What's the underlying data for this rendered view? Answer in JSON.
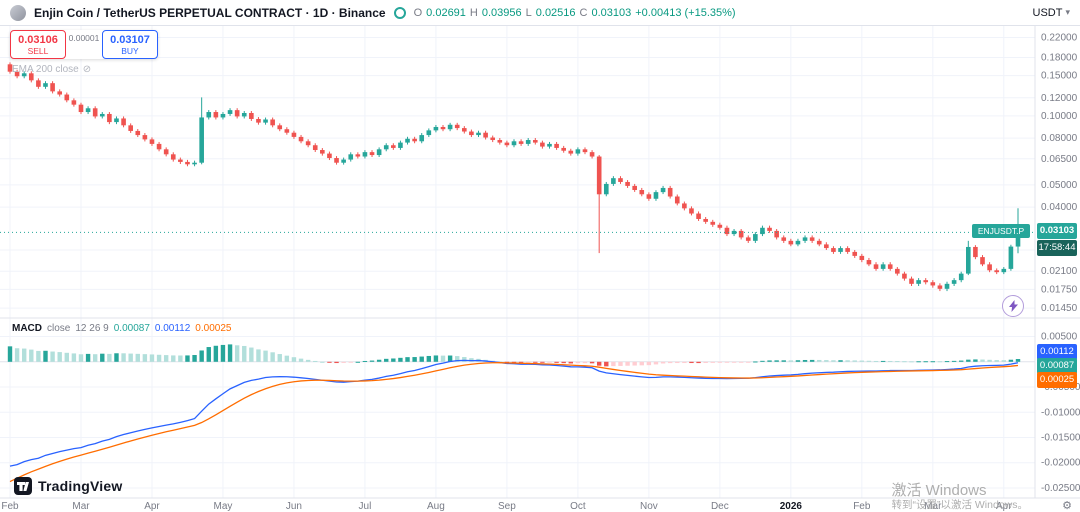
{
  "toolbar": {
    "symbol_title": "Enjin Coin / TetherUS PERPETUAL CONTRACT · 1D · Binance",
    "ohlc": {
      "o_label": "O",
      "o_value": "0.02691",
      "h_label": "H",
      "h_value": "0.03956",
      "l_label": "L",
      "l_value": "0.02516",
      "c_label": "C",
      "c_value": "0.03103",
      "change": "+0.00413 (+15.35%)"
    },
    "currency": "USDT"
  },
  "trade_panel": {
    "sell_price": "0.03106",
    "sell_label": "SELL",
    "spread": "0.00001",
    "buy_price": "0.03107",
    "buy_label": "BUY"
  },
  "indicators": {
    "ema": {
      "label": "EMA 200 close"
    },
    "macd": {
      "name": "MACD",
      "source": "close",
      "params": "12 26 9",
      "hist_value": "0.00087",
      "macd_value": "0.00112",
      "signal_value": "0.00025"
    }
  },
  "price_axis": {
    "labels": [
      "0.22000",
      "0.18000",
      "0.15000",
      "0.12000",
      "0.10000",
      "0.08000",
      "0.06500",
      "0.05000",
      "0.04000",
      "0.02600",
      "0.02100",
      "0.01750",
      "0.01450"
    ],
    "last_price": "0.03103",
    "countdown": "17:58:44",
    "symbol_tag": "ENJUSDT.P"
  },
  "macd_axis": {
    "labels": [
      "0.00500",
      "-0.00500",
      "-0.01000",
      "-0.01500",
      "-0.02000",
      "-0.02500"
    ],
    "badges": {
      "macd": "0.00112",
      "hist": "0.00087",
      "signal": "0.00025"
    }
  },
  "branding": {
    "name": "TradingView"
  },
  "watermark": {
    "line1": "激活 Windows",
    "line2": "转到“设置”以激活 Windows。"
  },
  "colors": {
    "up": "#26a69a",
    "down": "#ef5350",
    "text_up": "#089981",
    "macd_line": "#2962ff",
    "signal_line": "#ff6d00",
    "hist_up": "#26a69a",
    "hist_up_weak": "#b2dfdb",
    "hist_down": "#ef5350",
    "hist_down_weak": "#ffcdd2",
    "grid": "#f0f3fa",
    "axis_text": "#787b86",
    "border": "#e0e3eb",
    "sell": "#f23645",
    "buy": "#2962ff"
  },
  "chart_data": {
    "type": "candlestick",
    "symbol": "ENJUSDT.P",
    "exchange": "Binance",
    "interval": "1D",
    "price_scale": "log",
    "y_domain": [
      0.0138,
      0.242
    ],
    "price_ticks": [
      0.22,
      0.18,
      0.15,
      0.12,
      0.1,
      0.08,
      0.065,
      0.05,
      0.04,
      0.026,
      0.021,
      0.0175,
      0.0145
    ],
    "last_price": 0.03103,
    "last_candle": {
      "open": 0.02691,
      "high": 0.03956,
      "low": 0.02516,
      "close": 0.03103,
      "change_pct": 15.35
    },
    "months": [
      "Feb",
      "Mar",
      "Apr",
      "May",
      "Jun",
      "Jul",
      "Aug",
      "Sep",
      "Oct",
      "Nov",
      "Dec",
      "2026",
      "Feb",
      "Mar",
      "Apr"
    ],
    "month_indices": [
      0,
      10,
      20,
      30,
      40,
      50,
      60,
      70,
      80,
      90,
      100,
      110,
      120,
      130,
      140
    ],
    "candles_ohlc": [
      [
        0.168,
        0.1714,
        0.1529,
        0.156
      ],
      [
        0.156,
        0.1591,
        0.146,
        0.149
      ],
      [
        0.149,
        0.1566,
        0.146,
        0.1535
      ],
      [
        0.1535,
        0.1566,
        0.1401,
        0.143
      ],
      [
        0.143,
        0.1459,
        0.1313,
        0.134
      ],
      [
        0.134,
        0.1418,
        0.1313,
        0.139
      ],
      [
        0.139,
        0.1418,
        0.1254,
        0.128
      ],
      [
        0.128,
        0.1306,
        0.1215,
        0.124
      ],
      [
        0.124,
        0.1265,
        0.1147,
        0.117
      ],
      [
        0.117,
        0.1193,
        0.1098,
        0.112
      ],
      [
        0.112,
        0.1142,
        0.1019,
        0.104
      ],
      [
        0.104,
        0.1102,
        0.1019,
        0.108
      ],
      [
        0.108,
        0.1102,
        0.0975,
        0.0995
      ],
      [
        0.0995,
        0.104,
        0.0975,
        0.102
      ],
      [
        0.102,
        0.104,
        0.0921,
        0.094
      ],
      [
        0.094,
        0.0995,
        0.0921,
        0.0975
      ],
      [
        0.0975,
        0.0995,
        0.0892,
        0.091
      ],
      [
        0.091,
        0.0928,
        0.0843,
        0.086
      ],
      [
        0.086,
        0.0877,
        0.0809,
        0.0825
      ],
      [
        0.0825,
        0.0842,
        0.0774,
        0.079
      ],
      [
        0.079,
        0.0806,
        0.074,
        0.0755
      ],
      [
        0.0755,
        0.077,
        0.0701,
        0.0715
      ],
      [
        0.0715,
        0.0729,
        0.0666,
        0.068
      ],
      [
        0.068,
        0.0694,
        0.0632,
        0.0645
      ],
      [
        0.0645,
        0.0658,
        0.0617,
        0.063
      ],
      [
        0.063,
        0.0643,
        0.0603,
        0.0615
      ],
      [
        0.0615,
        0.0638,
        0.0603,
        0.0625
      ],
      [
        0.0625,
        0.1205,
        0.0615,
        0.0985
      ],
      [
        0.0985,
        0.1061,
        0.0965,
        0.104
      ],
      [
        0.104,
        0.1061,
        0.0965,
        0.0985
      ],
      [
        0.0985,
        0.104,
        0.0965,
        0.102
      ],
      [
        0.102,
        0.1081,
        0.1,
        0.106
      ],
      [
        0.106,
        0.1081,
        0.0975,
        0.0995
      ],
      [
        0.0995,
        0.1051,
        0.0975,
        0.103
      ],
      [
        0.103,
        0.1051,
        0.0951,
        0.097
      ],
      [
        0.097,
        0.0989,
        0.0916,
        0.0935
      ],
      [
        0.0935,
        0.0984,
        0.0916,
        0.0965
      ],
      [
        0.0965,
        0.0984,
        0.0892,
        0.091
      ],
      [
        0.091,
        0.0928,
        0.0858,
        0.0875
      ],
      [
        0.0875,
        0.0893,
        0.0828,
        0.0845
      ],
      [
        0.0845,
        0.0862,
        0.0794,
        0.081
      ],
      [
        0.081,
        0.0826,
        0.076,
        0.0775
      ],
      [
        0.0775,
        0.0791,
        0.073,
        0.0745
      ],
      [
        0.0745,
        0.076,
        0.0696,
        0.071
      ],
      [
        0.071,
        0.0724,
        0.0671,
        0.0685
      ],
      [
        0.0685,
        0.0699,
        0.0642,
        0.0655
      ],
      [
        0.0655,
        0.0668,
        0.0613,
        0.0625
      ],
      [
        0.0625,
        0.0658,
        0.0613,
        0.0645
      ],
      [
        0.0645,
        0.0694,
        0.0632,
        0.068
      ],
      [
        0.068,
        0.0694,
        0.0652,
        0.0665
      ],
      [
        0.0665,
        0.0709,
        0.0652,
        0.0695
      ],
      [
        0.0695,
        0.0709,
        0.0662,
        0.0675
      ],
      [
        0.0675,
        0.0729,
        0.0662,
        0.0715
      ],
      [
        0.0715,
        0.076,
        0.0701,
        0.0745
      ],
      [
        0.0745,
        0.076,
        0.0711,
        0.0725
      ],
      [
        0.0725,
        0.078,
        0.0711,
        0.0765
      ],
      [
        0.0765,
        0.0811,
        0.075,
        0.0795
      ],
      [
        0.0795,
        0.0811,
        0.076,
        0.0775
      ],
      [
        0.0775,
        0.0842,
        0.076,
        0.0825
      ],
      [
        0.0825,
        0.0882,
        0.0809,
        0.0865
      ],
      [
        0.0865,
        0.0913,
        0.0848,
        0.0895
      ],
      [
        0.0895,
        0.0913,
        0.0858,
        0.0875
      ],
      [
        0.0875,
        0.0933,
        0.0858,
        0.0915
      ],
      [
        0.0915,
        0.0933,
        0.0867,
        0.0885
      ],
      [
        0.0885,
        0.0903,
        0.0838,
        0.0855
      ],
      [
        0.0855,
        0.0872,
        0.0809,
        0.0825
      ],
      [
        0.0825,
        0.0862,
        0.0809,
        0.0845
      ],
      [
        0.0845,
        0.0862,
        0.0789,
        0.0805
      ],
      [
        0.0805,
        0.0821,
        0.0769,
        0.0785
      ],
      [
        0.0785,
        0.0801,
        0.075,
        0.0765
      ],
      [
        0.0765,
        0.078,
        0.073,
        0.0745
      ],
      [
        0.0745,
        0.0791,
        0.073,
        0.0775
      ],
      [
        0.0775,
        0.0791,
        0.074,
        0.0755
      ],
      [
        0.0755,
        0.0801,
        0.074,
        0.0785
      ],
      [
        0.0785,
        0.0801,
        0.075,
        0.0765
      ],
      [
        0.0765,
        0.078,
        0.072,
        0.0735
      ],
      [
        0.0735,
        0.077,
        0.072,
        0.0755
      ],
      [
        0.0755,
        0.077,
        0.0711,
        0.0725
      ],
      [
        0.0725,
        0.074,
        0.0691,
        0.0705
      ],
      [
        0.0705,
        0.0719,
        0.0671,
        0.0685
      ],
      [
        0.0685,
        0.0729,
        0.0671,
        0.0715
      ],
      [
        0.0715,
        0.0729,
        0.0681,
        0.0695
      ],
      [
        0.0695,
        0.0709,
        0.0652,
        0.0665
      ],
      [
        0.0665,
        0.0675,
        0.0252,
        0.0455
      ],
      [
        0.0455,
        0.0515,
        0.0446,
        0.0505
      ],
      [
        0.0505,
        0.0546,
        0.0495,
        0.0535
      ],
      [
        0.0535,
        0.0546,
        0.0505,
        0.0515
      ],
      [
        0.0515,
        0.0525,
        0.0485,
        0.0495
      ],
      [
        0.0495,
        0.0505,
        0.0466,
        0.0475
      ],
      [
        0.0475,
        0.0485,
        0.0446,
        0.0455
      ],
      [
        0.0455,
        0.0464,
        0.0426,
        0.0435
      ],
      [
        0.0435,
        0.0474,
        0.0426,
        0.0465
      ],
      [
        0.0465,
        0.0495,
        0.0456,
        0.0485
      ],
      [
        0.0485,
        0.0495,
        0.0436,
        0.0445
      ],
      [
        0.0445,
        0.0454,
        0.0407,
        0.0415
      ],
      [
        0.0415,
        0.0423,
        0.0387,
        0.0395
      ],
      [
        0.0395,
        0.0403,
        0.0368,
        0.0375
      ],
      [
        0.0375,
        0.0383,
        0.0348,
        0.0355
      ],
      [
        0.0355,
        0.0362,
        0.0338,
        0.0345
      ],
      [
        0.0345,
        0.0352,
        0.0328,
        0.0335
      ],
      [
        0.0335,
        0.0342,
        0.0319,
        0.0325
      ],
      [
        0.0325,
        0.0332,
        0.0299,
        0.0305
      ],
      [
        0.0305,
        0.0321,
        0.0299,
        0.0315
      ],
      [
        0.0315,
        0.0321,
        0.0289,
        0.0295
      ],
      [
        0.0295,
        0.0301,
        0.0279,
        0.0285
      ],
      [
        0.0285,
        0.0311,
        0.0279,
        0.0305
      ],
      [
        0.0305,
        0.0332,
        0.0299,
        0.0325
      ],
      [
        0.0325,
        0.0332,
        0.0309,
        0.0315
      ],
      [
        0.0315,
        0.0321,
        0.0289,
        0.0295
      ],
      [
        0.0295,
        0.0301,
        0.0279,
        0.0285
      ],
      [
        0.0285,
        0.0291,
        0.027,
        0.0275
      ],
      [
        0.0275,
        0.0291,
        0.027,
        0.0285
      ],
      [
        0.0285,
        0.0301,
        0.0279,
        0.0295
      ],
      [
        0.0295,
        0.0301,
        0.0279,
        0.0285
      ],
      [
        0.0285,
        0.0291,
        0.027,
        0.0275
      ],
      [
        0.0275,
        0.0281,
        0.026,
        0.0265
      ],
      [
        0.0265,
        0.027,
        0.025,
        0.0255
      ],
      [
        0.0255,
        0.027,
        0.025,
        0.0265
      ],
      [
        0.0265,
        0.027,
        0.025,
        0.0255
      ],
      [
        0.0255,
        0.026,
        0.024,
        0.0245
      ],
      [
        0.0245,
        0.025,
        0.023,
        0.0235
      ],
      [
        0.0235,
        0.024,
        0.0221,
        0.0225
      ],
      [
        0.0225,
        0.023,
        0.0211,
        0.0215
      ],
      [
        0.0215,
        0.023,
        0.0211,
        0.0225
      ],
      [
        0.0225,
        0.023,
        0.0211,
        0.0215
      ],
      [
        0.0215,
        0.0219,
        0.0201,
        0.0205
      ],
      [
        0.0205,
        0.0209,
        0.0191,
        0.0195
      ],
      [
        0.0195,
        0.0199,
        0.0181,
        0.0185
      ],
      [
        0.0185,
        0.0196,
        0.0181,
        0.0192
      ],
      [
        0.0192,
        0.0196,
        0.0184,
        0.0188
      ],
      [
        0.0188,
        0.0192,
        0.0178,
        0.0182
      ],
      [
        0.0182,
        0.0186,
        0.0172,
        0.0176
      ],
      [
        0.0176,
        0.0189,
        0.0172,
        0.0185
      ],
      [
        0.0185,
        0.0196,
        0.0181,
        0.0192
      ],
      [
        0.0192,
        0.0209,
        0.0188,
        0.0205
      ],
      [
        0.0205,
        0.0285,
        0.0202,
        0.0268
      ],
      [
        0.0268,
        0.0273,
        0.0237,
        0.0242
      ],
      [
        0.0242,
        0.0247,
        0.0221,
        0.0225
      ],
      [
        0.0225,
        0.023,
        0.0208,
        0.0212
      ],
      [
        0.0212,
        0.0216,
        0.0204,
        0.0208
      ],
      [
        0.0208,
        0.0219,
        0.0204,
        0.0215
      ],
      [
        0.0215,
        0.0274,
        0.0211,
        0.0269
      ],
      [
        0.02691,
        0.03956,
        0.02516,
        0.03103
      ]
    ],
    "macd": {
      "fast": 12,
      "slow": 26,
      "signal": 9,
      "current": {
        "hist": 0.00087,
        "macd": 0.00112,
        "signal": 0.00025
      },
      "axis_ticks": [
        0.005,
        -0.005,
        -0.01,
        -0.015,
        -0.02,
        -0.025
      ],
      "y_domain": [
        -0.0262,
        0.0063
      ]
    }
  }
}
